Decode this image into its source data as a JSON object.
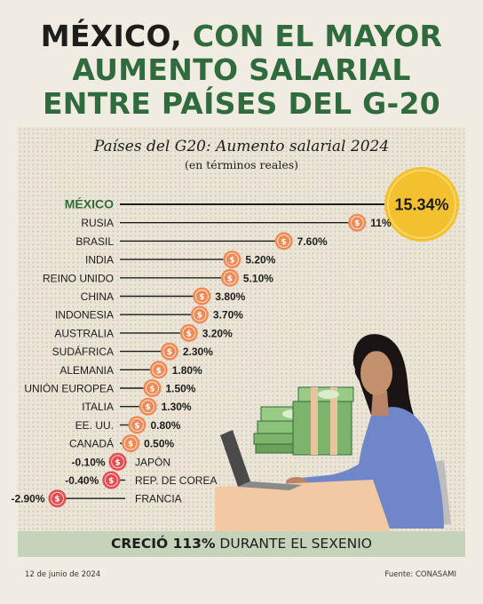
{
  "headline": {
    "line1_dark": "MÉXICO,",
    "line1_green": " CON EL MAYOR",
    "line2": "AUMENTO SALARIAL",
    "line3": "ENTRE PAÍSES DEL G-20"
  },
  "subtitle": "Países del G20: Aumento salarial 2024",
  "subsubtitle": "(en términos reales)",
  "band": {
    "bold": "CRECIÓ 113%",
    "rest": " DURANTE EL SEXENIO"
  },
  "footer": {
    "date": "12 de junio de 2024",
    "source": "Fuente: CONASAMI"
  },
  "colors": {
    "mexico_coin": "#f3c12f",
    "coin": "#f08a55",
    "negative_coin": "#e84b4f",
    "green": "#2f6b3d"
  },
  "icons": [
    "dollar-coin-icon",
    "woman-at-laptop-illustration",
    "money-stack-illustration"
  ],
  "chart_data": {
    "type": "bar",
    "title": "Países del G20: Aumento salarial 2024",
    "subtitle": "(en términos reales)",
    "unit": "%",
    "categories": [
      "MÉXICO",
      "RUSIA",
      "BRASIL",
      "INDIA",
      "REINO UNIDO",
      "CHINA",
      "INDONESIA",
      "AUSTRALIA",
      "SUDÁFRICA",
      "ALEMANIA",
      "UNIÓN EUROPEA",
      "ITALIA",
      "EE. UU.",
      "CANADÁ",
      "JAPÓN",
      "REP. DE COREA",
      "FRANCIA"
    ],
    "values": [
      15.34,
      11,
      7.6,
      5.2,
      5.1,
      3.8,
      3.7,
      3.2,
      2.3,
      1.8,
      1.5,
      1.3,
      0.8,
      0.5,
      -0.1,
      -0.4,
      -2.9
    ],
    "value_labels": [
      "15.34%",
      "11%",
      "7.60%",
      "5.20%",
      "5.10%",
      "3.80%",
      "3.70%",
      "3.20%",
      "2.30%",
      "1.80%",
      "1.50%",
      "1.30%",
      "0.80%",
      "0.50%",
      "-0.10%",
      "-0.40%",
      "-2.90%"
    ],
    "highlight": "MÉXICO"
  }
}
